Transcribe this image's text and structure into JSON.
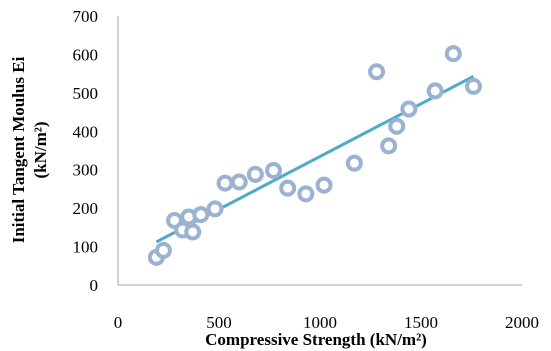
{
  "chart_data": {
    "type": "scatter",
    "title": "",
    "xlabel": "Compressive Strength (kN/m²)",
    "ylabel_line1": "Initial Tangent Moulus Ei",
    "ylabel_line2": "(kN/m²)",
    "xlim": [
      0,
      2000
    ],
    "ylim": [
      0,
      700
    ],
    "x_ticks": [
      "0",
      "500",
      "1000",
      "1500",
      "2000"
    ],
    "y_ticks": [
      "0",
      "100",
      "200",
      "300",
      "400",
      "500",
      "600",
      "700"
    ],
    "grid": false,
    "legend": "none",
    "series": [
      {
        "marker": "ring",
        "color": "#9cb2d1",
        "points": [
          {
            "x": 190,
            "y": 72
          },
          {
            "x": 225,
            "y": 90
          },
          {
            "x": 280,
            "y": 168
          },
          {
            "x": 320,
            "y": 143
          },
          {
            "x": 350,
            "y": 177
          },
          {
            "x": 370,
            "y": 138
          },
          {
            "x": 410,
            "y": 183
          },
          {
            "x": 480,
            "y": 198
          },
          {
            "x": 530,
            "y": 265
          },
          {
            "x": 600,
            "y": 268
          },
          {
            "x": 680,
            "y": 288
          },
          {
            "x": 770,
            "y": 298
          },
          {
            "x": 840,
            "y": 252
          },
          {
            "x": 930,
            "y": 237
          },
          {
            "x": 1020,
            "y": 260
          },
          {
            "x": 1170,
            "y": 317
          },
          {
            "x": 1280,
            "y": 555
          },
          {
            "x": 1340,
            "y": 362
          },
          {
            "x": 1380,
            "y": 413
          },
          {
            "x": 1440,
            "y": 458
          },
          {
            "x": 1570,
            "y": 505
          },
          {
            "x": 1660,
            "y": 602
          },
          {
            "x": 1760,
            "y": 517
          }
        ]
      }
    ],
    "trendline": {
      "type": "linear",
      "color": "#4bacc6",
      "x": [
        190,
        1760
      ],
      "y": [
        112,
        543
      ]
    }
  }
}
